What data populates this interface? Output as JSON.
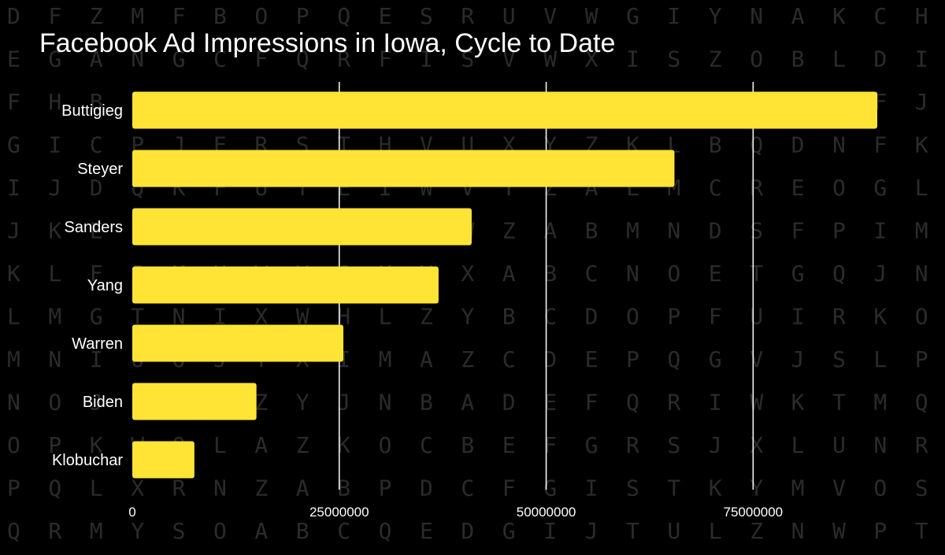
{
  "chart_data": {
    "type": "bar",
    "orientation": "horizontal",
    "title": "Facebook Ad Impressions in Iowa, Cycle to Date",
    "xlabel": "",
    "ylabel": "",
    "categories": [
      "Buttigieg",
      "Steyer",
      "Sanders",
      "Yang",
      "Warren",
      "Biden",
      "Klobuchar"
    ],
    "values": [
      90000000,
      65500000,
      41000000,
      37000000,
      25500000,
      15000000,
      7500000
    ],
    "xlim": [
      0,
      90000000
    ],
    "x_ticks": [
      "0",
      "25000000",
      "50000000",
      "75000000"
    ],
    "grid": "vertical",
    "legend": "none"
  },
  "colors": {
    "background": "#000000",
    "bar": "#ffe436",
    "text": "#ffffff",
    "grid": "#ffffff",
    "background_letters": "#2b2b2b"
  },
  "background_letters": [
    "DFZMFBOPQESRUVWGIYNAKCH",
    "EGANGCFQRFISVWXISZOBLDI",
    "FHBOIDOPSGUTWXYLKAPCMFJ",
    "GICPJERSTHVUXYZKLBQDNFK",
    "IJDQKFUTEIWVYZALMCREOGL",
    "JKERLGVUFJXWZABMNDSFPIM",
    "KLFSMHWVGKYXABCNOETGQJN",
    "LMGTNIXWHLZYBCDOPFUIRKO",
    "MNIUOJYXIMAZCDEPQGVJSLP",
    "NOJVPKZYJNBADEFQRIWKTMQ",
    "OPKWQLAZKOCBEFGRSJXLUNR",
    "PQLXRNZABPDCFGISTKYMVOS",
    "QRMYSOABCQEDGIJTULZNWPT"
  ]
}
